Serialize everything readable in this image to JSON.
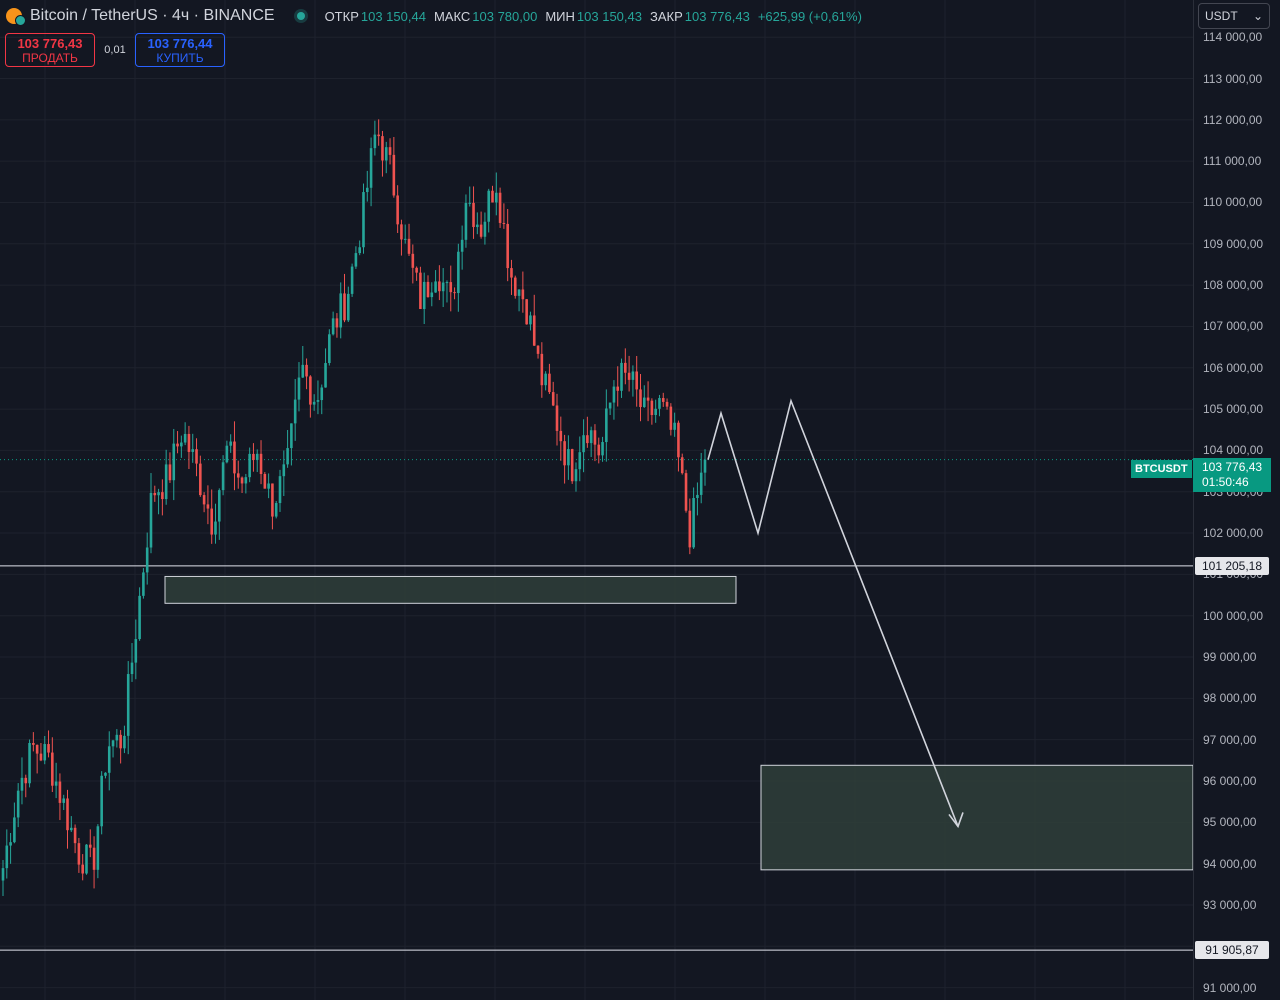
{
  "header": {
    "symbol_title": "Bitcoin / TetherUS · 4ч · BINANCE",
    "ohlc": [
      {
        "label": "ОТКР",
        "value": "103 150,44"
      },
      {
        "label": "МАКС",
        "value": "103 780,00"
      },
      {
        "label": "МИН",
        "value": "103 150,43"
      },
      {
        "label": "ЗАКР",
        "value": "103 776,43"
      },
      {
        "label": "",
        "value": "+625,99 (+0,61%)"
      }
    ]
  },
  "trade": {
    "sell_price": "103 776,43",
    "sell_label": "ПРОДАТЬ",
    "spread": "0,01",
    "buy_price": "103 776,44",
    "buy_label": "КУПИТЬ"
  },
  "currency": {
    "value": "USDT",
    "icon": "chevron-down-icon"
  },
  "colors": {
    "background": "#131722",
    "up": "#26a69a",
    "down": "#ef5350",
    "grid": "#1e222d",
    "zone_fill": "#2f3e3a",
    "tag": "#089981"
  },
  "price_tag": {
    "symbol": "BTCUSDT",
    "price": "103 776,43",
    "timer": "01:50:46"
  },
  "chart_data": {
    "type": "candlestick",
    "y_axis": {
      "range": [
        90700,
        114900
      ],
      "ticks": [
        114000,
        113000,
        112000,
        111000,
        110000,
        109000,
        108000,
        107000,
        106000,
        105000,
        104000,
        103000,
        102000,
        101000,
        100000,
        99000,
        98000,
        97000,
        96000,
        95000,
        94000,
        93000,
        92000,
        91000
      ],
      "tick_labels": [
        "114 000,00",
        "113 000,00",
        "112 000,00",
        "111 000,00",
        "110 000,00",
        "109 000,00",
        "108 000,00",
        "107 000,00",
        "106 000,00",
        "105 000,00",
        "104 000,00",
        "103 000,00",
        "102 000,00",
        "101 000,00",
        "100 000,00",
        "99 000,00",
        "98 000,00",
        "97 000,00",
        "96 000,00",
        "95 000,00",
        "94 000,00",
        "93 000,00",
        "92 000,00",
        "91 000,00"
      ]
    },
    "close_path": [
      93900,
      95800,
      96800,
      96600,
      95500,
      94300,
      93900,
      96900,
      97000,
      100000,
      103000,
      103300,
      104500,
      103500,
      102300,
      104000,
      103200,
      104000,
      102700,
      103500,
      106000,
      105200,
      106900,
      107700,
      109500,
      111800,
      110700,
      108800,
      107600,
      108500,
      107500,
      110200,
      109400,
      110600,
      108300,
      107600,
      105800,
      104800,
      103500,
      104700,
      103900,
      105800,
      105700,
      104800,
      105100,
      104200,
      102000,
      103776
    ],
    "candle_count": 186,
    "last_close": 103776.43,
    "horizontal_lines": [
      {
        "price": 101205.18,
        "label": "101 205,18"
      },
      {
        "price": 91905.87,
        "label": "91 905,87"
      }
    ],
    "zones": [
      {
        "from": 100300,
        "to": 100950
      },
      {
        "from": 93850,
        "to": 96380
      }
    ],
    "projection_path": [
      103776,
      104900,
      102000,
      105200,
      94900
    ],
    "grid": true
  }
}
